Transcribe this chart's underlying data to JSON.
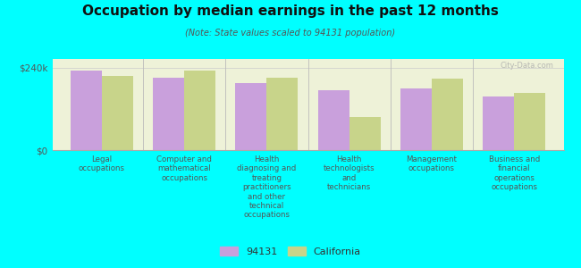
{
  "title": "Occupation by median earnings in the past 12 months",
  "subtitle": "(Note: State values scaled to 94131 population)",
  "categories": [
    "Legal\noccupations",
    "Computer and\nmathematical\noccupations",
    "Health\ndiagnosing and\ntreating\npractitioners\nand other\ntechnical\noccupations",
    "Health\ntechnologists\nand\ntechnicians",
    "Management\noccupations",
    "Business and\nfinancial\noperations\noccupations"
  ],
  "values_94131": [
    230000,
    210000,
    195000,
    175000,
    178000,
    155000
  ],
  "values_california": [
    215000,
    232000,
    210000,
    95000,
    208000,
    165000
  ],
  "color_94131": "#c9a0dc",
  "color_california": "#c8d48a",
  "background_color": "#00ffff",
  "plot_bg_color": "#eef2d8",
  "ytick_labels": [
    "$0",
    "$240k"
  ],
  "ytick_vals": [
    0,
    240000
  ],
  "ymax": 265000,
  "legend_label_94131": "94131",
  "legend_label_california": "California",
  "watermark": "City-Data.com"
}
